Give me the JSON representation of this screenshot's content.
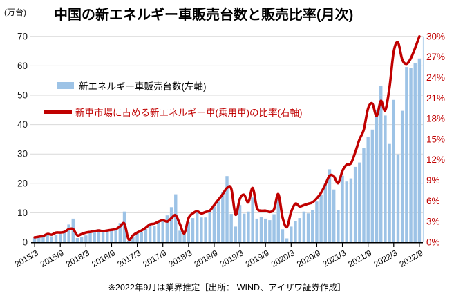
{
  "chart_data": {
    "type": "combo",
    "title": "中国の新エネルギー車販売台数と販売比率(月次)",
    "note": "※2022年9月は業界推定［出所： WIND、アイザワ証券作成］",
    "grid": "horizontal",
    "x_tick_labels": [
      "2015/3",
      "2015/9",
      "2016/3",
      "2016/9",
      "2017/3",
      "2017/9",
      "2018/3",
      "2018/9",
      "2019/3",
      "2019/9",
      "2020/3",
      "2020/9",
      "2021/3",
      "2021/9",
      "2022/3",
      "2022/9"
    ],
    "x_months": [
      "2015/3",
      "2015/4",
      "2015/5",
      "2015/6",
      "2015/7",
      "2015/8",
      "2015/9",
      "2015/10",
      "2015/11",
      "2015/12",
      "2016/1",
      "2016/2",
      "2016/3",
      "2016/4",
      "2016/5",
      "2016/6",
      "2016/7",
      "2016/8",
      "2016/9",
      "2016/10",
      "2016/11",
      "2016/12",
      "2017/1",
      "2017/2",
      "2017/3",
      "2017/4",
      "2017/5",
      "2017/6",
      "2017/7",
      "2017/8",
      "2017/9",
      "2017/10",
      "2017/11",
      "2017/12",
      "2018/1",
      "2018/2",
      "2018/3",
      "2018/4",
      "2018/5",
      "2018/6",
      "2018/7",
      "2018/8",
      "2018/9",
      "2018/10",
      "2018/11",
      "2018/12",
      "2019/1",
      "2019/2",
      "2019/3",
      "2019/4",
      "2019/5",
      "2019/6",
      "2019/7",
      "2019/8",
      "2019/9",
      "2019/10",
      "2019/11",
      "2019/12",
      "2020/1",
      "2020/2",
      "2020/3",
      "2020/4",
      "2020/5",
      "2020/6",
      "2020/7",
      "2020/8",
      "2020/9",
      "2020/10",
      "2020/11",
      "2020/12",
      "2021/1",
      "2021/2",
      "2021/3",
      "2021/4",
      "2021/5",
      "2021/6",
      "2021/7",
      "2021/8",
      "2021/9",
      "2021/10",
      "2021/11",
      "2021/12",
      "2022/1",
      "2022/2",
      "2022/3",
      "2022/4",
      "2022/5",
      "2022/6",
      "2022/7",
      "2022/8",
      "2022/9"
    ],
    "left_axis": {
      "label": "(万台)",
      "min": 0,
      "max": 70,
      "ticks": [
        0,
        10,
        20,
        30,
        40,
        50,
        60,
        70
      ]
    },
    "right_axis": {
      "min": 0,
      "max": 30,
      "ticks": [
        "0%",
        "3%",
        "6%",
        "9%",
        "12%",
        "15%",
        "18%",
        "21%",
        "24%",
        "27%",
        "30%"
      ]
    },
    "series": [
      {
        "name": "新エネルギー車販売台数(左軸)",
        "type": "bar",
        "axis": "left",
        "unit": "万台",
        "color": "#9DC3E6",
        "values": [
          1.4,
          1.5,
          1.9,
          2.5,
          2.0,
          2.4,
          2.8,
          3.4,
          6.0,
          8.0,
          1.4,
          1.8,
          2.3,
          3.1,
          3.5,
          4.4,
          3.8,
          3.8,
          4.4,
          4.4,
          6.5,
          10.4,
          0.5,
          1.8,
          3.1,
          3.4,
          4.5,
          5.9,
          5.6,
          6.8,
          7.8,
          9.1,
          11.9,
          16.3,
          3.9,
          3.4,
          6.8,
          8.2,
          10.2,
          8.4,
          8.4,
          10.1,
          12.1,
          13.8,
          16.9,
          22.5,
          9.6,
          5.3,
          12.6,
          9.7,
          10.4,
          15.2,
          8.0,
          8.5,
          8.0,
          7.5,
          9.5,
          16.3,
          4.4,
          1.3,
          5.3,
          7.2,
          8.2,
          10.4,
          9.8,
          10.9,
          13.8,
          16.0,
          20.0,
          24.8,
          17.9,
          11.0,
          22.6,
          20.6,
          21.7,
          25.6,
          27.1,
          32.1,
          35.7,
          38.3,
          45.0,
          53.1,
          43.1,
          33.4,
          48.4,
          29.9,
          44.7,
          59.6,
          59.3,
          61.0,
          62.5
        ]
      },
      {
        "name": "新車市場に占める新エネルギー車(乗用車)の比率(右軸)",
        "type": "line",
        "axis": "right",
        "unit": "%",
        "color": "#C00000",
        "values": [
          0.7,
          0.8,
          0.9,
          1.2,
          1.1,
          1.4,
          1.4,
          1.5,
          1.9,
          1.9,
          1.0,
          1.2,
          1.4,
          1.5,
          1.6,
          1.7,
          1.6,
          1.7,
          1.8,
          1.9,
          2.3,
          2.7,
          0.4,
          1.0,
          1.4,
          1.7,
          2.1,
          2.6,
          2.7,
          3.0,
          3.2,
          3.0,
          3.5,
          3.9,
          2.6,
          1.3,
          3.5,
          4.2,
          4.5,
          4.2,
          4.4,
          4.6,
          5.4,
          6.2,
          7.0,
          7.9,
          7.8,
          4.0,
          6.3,
          6.9,
          5.8,
          7.9,
          5.0,
          4.6,
          4.6,
          4.4,
          4.8,
          7.0,
          3.6,
          2.2,
          4.4,
          5.6,
          5.2,
          5.4,
          5.6,
          5.8,
          6.4,
          7.2,
          8.4,
          9.7,
          9.6,
          8.6,
          10.4,
          11.3,
          11.5,
          13.1,
          15.0,
          16.4,
          19.5,
          20.2,
          18.4,
          20.6,
          19.2,
          22.5,
          27.8,
          29.1,
          26.6,
          26.0,
          26.8,
          28.3,
          30.0
        ]
      }
    ],
    "style": {
      "gridline_color": "#D9D9D9",
      "axis_color": "#000000",
      "right_border_color": "#BDD7EE",
      "left_tick_color": "#1a1a1a",
      "right_tick_color": "#C00000"
    }
  }
}
